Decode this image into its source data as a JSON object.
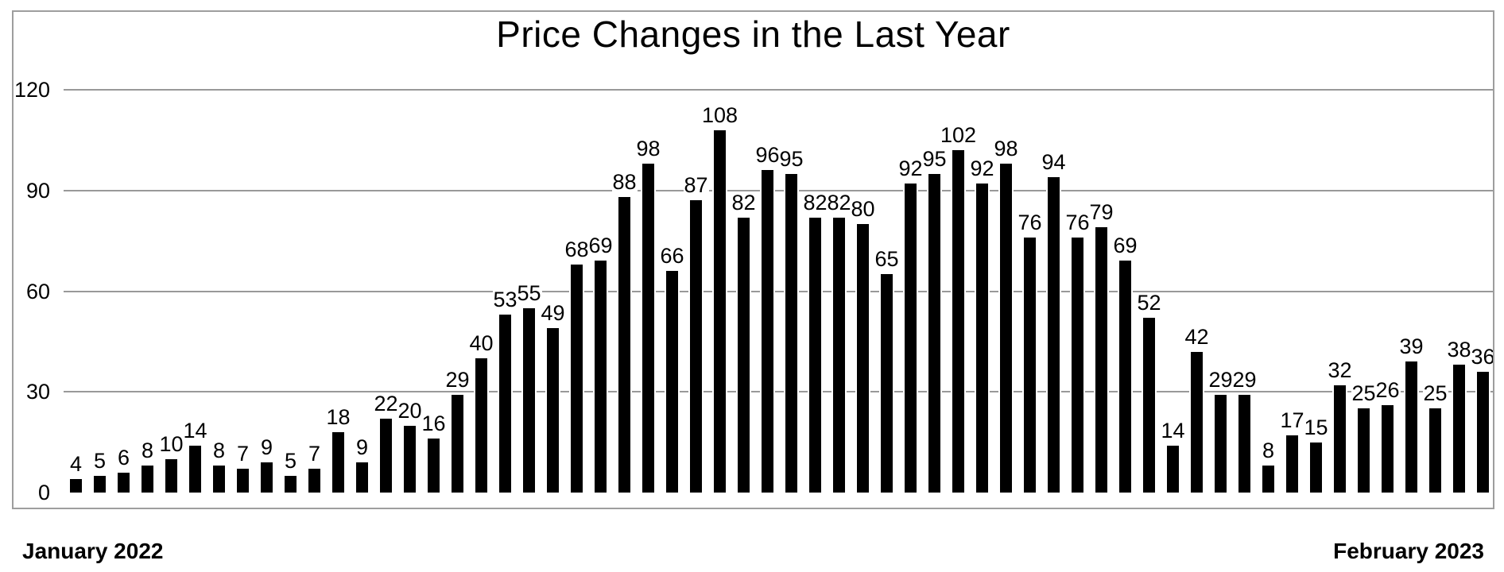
{
  "chart_data": {
    "type": "bar",
    "title": "Price Changes in the Last Year",
    "x_axis": {
      "start_label": "January 2022",
      "end_label": "February 2023"
    },
    "ylabel": "",
    "xlabel": "",
    "y_ticks": [
      0,
      30,
      60,
      90,
      120
    ],
    "ylim": [
      0,
      120
    ],
    "grid": true,
    "legend_position": "none",
    "bar_value_labels_shown": true,
    "values": [
      4,
      5,
      6,
      8,
      10,
      14,
      8,
      7,
      9,
      5,
      7,
      18,
      9,
      22,
      20,
      16,
      29,
      40,
      53,
      55,
      49,
      68,
      69,
      88,
      98,
      66,
      87,
      108,
      82,
      96,
      95,
      82,
      82,
      80,
      65,
      92,
      95,
      102,
      92,
      98,
      76,
      94,
      76,
      79,
      69,
      52,
      14,
      42,
      29,
      29,
      8,
      17,
      15,
      32,
      25,
      26,
      39,
      25,
      38,
      36
    ],
    "colors": {
      "bar": "#000000",
      "gridline": "#999999",
      "frame_border": "#9e9e9e",
      "background": "#ffffff",
      "text": "#000000"
    }
  }
}
